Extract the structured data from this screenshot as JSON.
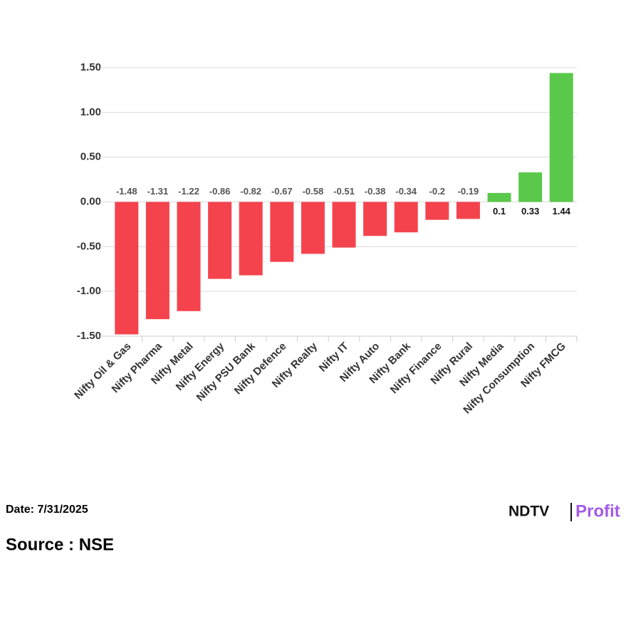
{
  "chart_data": {
    "type": "bar",
    "categories": [
      "Nifty Oil & Gas",
      "Nifty Pharma",
      "Nifty Metal",
      "Nifty Energy",
      "Nifty PSU Bank",
      "Nifty Defence",
      "Nifty Realty",
      "Nifty IT",
      "Nifty Auto",
      "Nifty Bank",
      "Nifty Finance",
      "Nifty Rural",
      "Nifty Media",
      "Nifty Consumption",
      "Nifty FMCG"
    ],
    "values": [
      -1.48,
      -1.31,
      -1.22,
      -0.86,
      -0.82,
      -0.67,
      -0.58,
      -0.51,
      -0.38,
      -0.34,
      -0.2,
      -0.19,
      0.1,
      0.33,
      1.44
    ],
    "positive_color": "#5ac84a",
    "negative_color": "#f4434d",
    "ylim": [
      -1.5,
      1.5
    ],
    "yticks": [
      {
        "value": -1.5,
        "label": "-1.50"
      },
      {
        "value": -1,
        "label": "-1.00"
      },
      {
        "value": -0.5,
        "label": "-0.50"
      },
      {
        "value": 0,
        "label": "0.00"
      },
      {
        "value": 0.5,
        "label": "0.50"
      },
      {
        "value": 1,
        "label": "1.00"
      },
      {
        "value": 1.5,
        "label": "1.50"
      }
    ],
    "grid": true
  },
  "footer": {
    "date": "Date: 7/31/2025",
    "source": "Source : NSE",
    "logo_left": "NDTV",
    "logo_right": "Profit"
  }
}
